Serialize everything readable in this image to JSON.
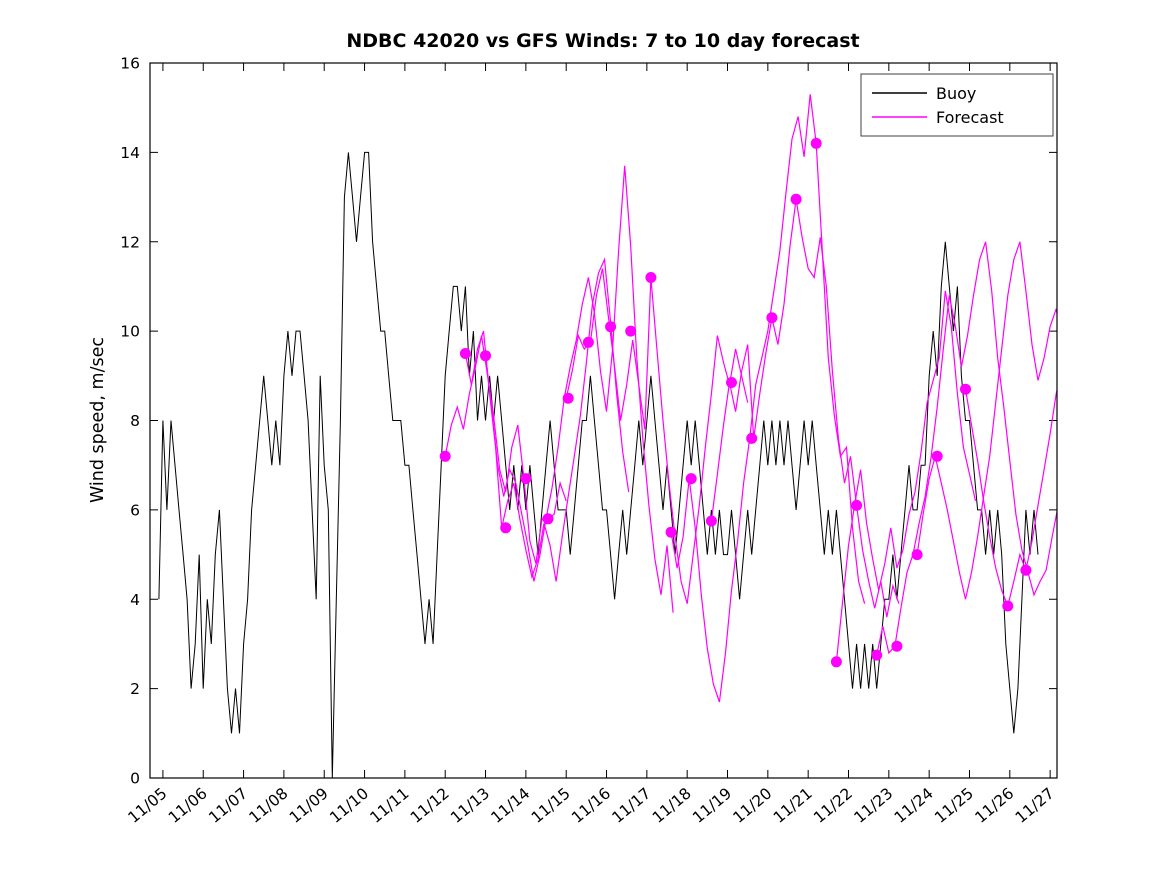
{
  "legend": {
    "buoy": "Buoy",
    "forecast": "Forecast"
  },
  "colors": {
    "buoy": "#000000",
    "forecast": "#FF00FF",
    "background": "#FFFFFF"
  },
  "chart_data": {
    "type": "line",
    "title": "NDBC 42020 vs GFS Winds: 7 to 10 day forecast",
    "xlabel": "",
    "ylabel": "Wind speed, m/sec",
    "x_unit": "days since 11/05",
    "xlim": [
      -0.32,
      22.17
    ],
    "ylim": [
      0,
      16
    ],
    "grid": false,
    "legend_position": "top-right-inside",
    "y_ticks": [
      0,
      2,
      4,
      6,
      8,
      10,
      12,
      14,
      16
    ],
    "x_tick_pos": [
      0,
      1,
      2,
      3,
      4,
      5,
      6,
      7,
      8,
      9,
      10,
      11,
      12,
      13,
      14,
      15,
      16,
      17,
      18,
      19,
      20,
      21,
      22
    ],
    "x_tick_labels": [
      "11/05",
      "11/06",
      "11/07",
      "11/08",
      "11/09",
      "11/10",
      "11/11",
      "11/12",
      "11/13",
      "11/14",
      "11/15",
      "11/16",
      "11/17",
      "11/18",
      "11/19",
      "11/20",
      "11/21",
      "11/22",
      "11/23",
      "11/24",
      "11/25",
      "11/26",
      "11/27"
    ],
    "series": [
      {
        "name": "Buoy",
        "color": "#000000",
        "sample_t0": -0.1,
        "sample_dt": 0.1,
        "values": [
          4,
          8,
          6,
          8,
          7,
          6,
          5,
          4,
          2,
          3,
          5,
          2,
          4,
          3,
          5,
          6,
          4,
          2,
          1,
          2,
          1,
          3,
          4,
          6,
          7,
          8,
          9,
          8,
          7,
          8,
          7,
          9,
          10,
          9,
          10,
          10,
          9,
          8,
          6,
          4,
          9,
          7,
          6,
          0,
          4,
          8,
          13,
          14,
          13,
          12,
          13,
          14,
          14,
          12,
          11,
          10,
          10,
          9,
          8,
          8,
          8,
          7,
          7,
          6,
          5,
          4,
          3,
          4,
          3,
          5,
          7,
          9,
          10,
          11,
          11,
          10,
          11,
          9,
          10,
          8,
          9,
          8,
          9,
          8,
          9,
          8,
          7,
          6,
          7,
          6,
          7,
          6,
          7,
          6,
          5,
          6,
          7,
          8,
          7,
          6,
          6,
          6,
          5,
          6,
          7,
          8,
          8,
          9,
          8,
          7,
          6,
          6,
          5,
          4,
          5,
          6,
          5,
          6,
          7,
          8,
          7,
          8,
          9,
          8,
          7,
          6,
          7,
          6,
          5,
          6,
          7,
          8,
          7,
          8,
          7,
          6,
          5,
          6,
          5,
          6,
          5,
          5,
          6,
          5,
          4,
          5,
          6,
          5,
          6,
          7,
          8,
          7,
          8,
          7,
          8,
          7,
          8,
          7,
          6,
          7,
          8,
          7,
          8,
          7,
          6,
          5,
          6,
          5,
          6,
          5,
          4,
          3,
          2,
          3,
          2,
          3,
          2,
          3,
          2,
          3,
          4,
          4,
          5,
          4,
          5,
          6,
          7,
          6,
          6,
          7,
          7,
          9,
          10,
          9,
          11,
          12,
          11,
          10,
          11,
          9,
          8,
          8,
          7,
          6,
          6,
          5,
          6,
          5,
          6,
          5,
          3,
          2,
          1,
          2,
          4,
          6,
          5,
          6,
          5
        ]
      }
    ],
    "forecast_runs": [
      {
        "t0": 7.0,
        "dt": 0.15,
        "values": [
          7.2,
          7.9,
          8.3,
          7.8,
          8.6,
          9.2,
          9.9,
          9.0,
          8.1,
          6.9,
          6.4,
          7.4,
          7.9,
          6.7,
          5.3,
          4.8,
          5.8,
          5.8,
          5.9,
          6.6,
          6.2
        ]
      },
      {
        "t0": 7.5,
        "dt": 0.15,
        "values": [
          9.5,
          8.8,
          9.6,
          10.0,
          8.6,
          7.4,
          5.6,
          6.2,
          6.6,
          5.8,
          5.1,
          4.5,
          4.9,
          5.7,
          5.2,
          4.4,
          5.4,
          6.3,
          7.2,
          8.1,
          9.3,
          10.6,
          11.3,
          11.6,
          10.2,
          8.6,
          7.3,
          6.4
        ]
      },
      {
        "t0": 8.0,
        "dt": 0.15,
        "values": [
          9.45,
          8.3,
          7.0,
          6.3,
          6.9,
          6.6,
          5.9,
          5.2,
          4.4,
          5.0,
          5.8,
          6.5,
          7.4,
          8.5,
          9.2,
          9.8,
          10.6,
          11.2,
          10.4,
          9.1,
          8.2,
          9.6,
          11.8,
          13.7,
          11.9,
          9.4,
          7.6,
          6.1,
          4.9,
          4.1,
          5.2,
          3.7
        ]
      },
      {
        "t0": 10.0,
        "dt": 0.15,
        "values": [
          8.5,
          9.1,
          9.9,
          9.6,
          9.75,
          10.8,
          11.4,
          10.3,
          9.2,
          8.0,
          8.8,
          9.8,
          8.8,
          7.8,
          11.2,
          9.6,
          8.0,
          6.6,
          5.4,
          4.4,
          3.9,
          5.0,
          6.1,
          7.4,
          8.6,
          9.9,
          9.3,
          8.8,
          9.6,
          9.0,
          8.4
        ]
      },
      {
        "t0": 12.6,
        "dt": 0.15,
        "values": [
          5.5,
          4.7,
          5.4,
          6.7,
          5.6,
          4.1,
          2.9,
          2.1,
          1.7,
          2.8,
          4.2,
          5.3,
          6.6,
          7.6,
          8.8,
          9.4,
          10.0,
          10.9,
          11.8,
          13.1,
          14.3,
          14.8,
          13.9,
          15.3,
          14.2,
          11.8,
          9.4,
          8.1,
          7.2,
          7.4,
          5.6,
          4.4,
          3.9
        ]
      },
      {
        "t0": 13.6,
        "dt": 0.15,
        "values": [
          5.75,
          6.8,
          7.9,
          8.85,
          8.2,
          9.1,
          9.7,
          7.6,
          8.6,
          9.5,
          10.3,
          9.7,
          10.6,
          11.9,
          12.95,
          12.1,
          11.4,
          11.2,
          12.1,
          11.0,
          9.1,
          7.6,
          6.6,
          7.2,
          6.1,
          5.1,
          4.4,
          3.8,
          4.4,
          3.6,
          4.3,
          3.9
        ]
      },
      {
        "t0": 16.7,
        "dt": 0.15,
        "values": [
          2.6,
          3.9,
          5.2,
          6.1,
          6.9,
          5.7,
          4.9,
          4.2,
          4.8,
          5.6,
          4.7,
          5.1,
          5.9,
          6.4,
          7.3,
          8.4,
          8.9,
          9.4,
          10.9,
          10.1,
          8.6,
          7.4,
          6.8,
          6.2
        ]
      },
      {
        "t0": 17.7,
        "dt": 0.15,
        "values": [
          2.75,
          3.4,
          2.8,
          2.95,
          3.8,
          4.6,
          5.0,
          5.7,
          6.3,
          7.2,
          8.3,
          9.6,
          10.8,
          10.1,
          9.2,
          9.9,
          10.8,
          11.6,
          12.0,
          10.9,
          9.4,
          8.3,
          7.1,
          5.9,
          5.1,
          4.6,
          4.1,
          4.4,
          4.65,
          5.4,
          6.1
        ]
      },
      {
        "t0": 18.7,
        "dt": 0.15,
        "values": [
          5.0,
          5.9,
          6.7,
          7.2,
          6.6,
          6.0,
          5.3,
          4.6,
          4.0,
          4.6,
          5.4,
          6.3,
          7.2,
          8.4,
          9.6,
          10.8,
          11.6,
          12.0,
          10.9,
          9.7,
          8.9,
          9.4,
          10.1,
          10.5,
          9.7
        ]
      },
      {
        "t0": 19.9,
        "dt": 0.15,
        "values": [
          8.7,
          7.9,
          7.1,
          6.2,
          5.4,
          4.7,
          4.2,
          3.85,
          4.4,
          5.0,
          4.65,
          5.3,
          6.1,
          6.9,
          7.7,
          8.6,
          9.2
        ]
      }
    ],
    "forecast_markers": [
      [
        7.0,
        7.2
      ],
      [
        7.5,
        9.5
      ],
      [
        8.0,
        9.45
      ],
      [
        8.5,
        5.6
      ],
      [
        9.0,
        6.7
      ],
      [
        9.55,
        5.8
      ],
      [
        10.05,
        8.5
      ],
      [
        10.55,
        9.75
      ],
      [
        11.1,
        10.1
      ],
      [
        11.6,
        10.0
      ],
      [
        12.1,
        11.2
      ],
      [
        12.6,
        5.5
      ],
      [
        13.1,
        6.7
      ],
      [
        13.6,
        5.75
      ],
      [
        14.1,
        8.85
      ],
      [
        14.6,
        7.6
      ],
      [
        15.1,
        10.3
      ],
      [
        15.7,
        12.95
      ],
      [
        16.2,
        14.2
      ],
      [
        16.7,
        2.6
      ],
      [
        17.2,
        6.1
      ],
      [
        17.7,
        2.75
      ],
      [
        18.2,
        2.95
      ],
      [
        18.7,
        5.0
      ],
      [
        19.2,
        7.2
      ],
      [
        19.9,
        8.7
      ],
      [
        20.95,
        3.85
      ],
      [
        21.4,
        4.65
      ]
    ]
  }
}
